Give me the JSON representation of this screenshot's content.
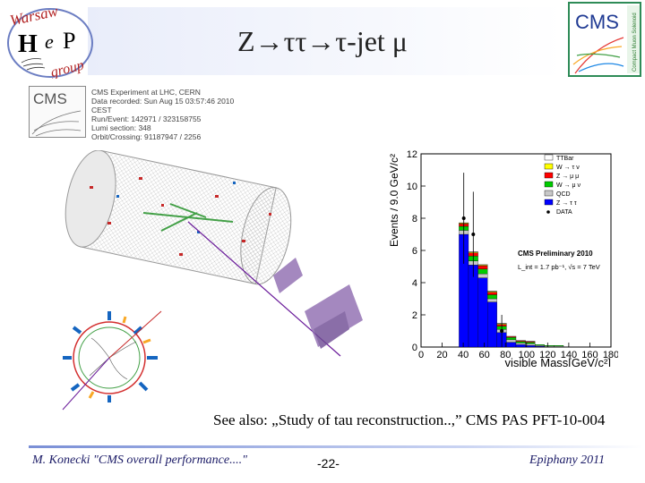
{
  "slide": {
    "title": "Z→ττ→τ-jet μ",
    "see_also": "See also: „Study of tau reconstruction..,” CMS PAS PFT-10-004",
    "footer_left": "M. Konecki  \"CMS overall performance....\"",
    "footer_page": "-22-",
    "footer_right": "Epiphany 2011"
  },
  "logo_left": {
    "line1": "Warsaw",
    "h": "H",
    "e": "e",
    "p": "P",
    "group": "group"
  },
  "logo_right": {
    "text": "CMS",
    "side": "Compact Muon Solenoid"
  },
  "event_info": {
    "logo_text": "CMS",
    "lines": [
      "CMS Experiment at LHC, CERN",
      "Data recorded: Sun Aug 15 03:57:46 2010 CEST",
      "Run/Event: 142971 / 323158755",
      "Lumi section: 348",
      "Orbit/Crossing: 91187947 / 2256"
    ]
  },
  "chart_data": {
    "type": "bar",
    "stacked": true,
    "xlabel": "visible Mass[GeV/c²]",
    "ylabel": "Events / 9.0 GeV/c²",
    "xlim": [
      0,
      180
    ],
    "ylim": [
      0,
      12
    ],
    "xticks": [
      0,
      20,
      40,
      60,
      80,
      100,
      120,
      140,
      160,
      180
    ],
    "yticks": [
      0,
      2,
      4,
      6,
      8,
      10,
      12
    ],
    "annotation_1": "CMS Preliminary 2010",
    "annotation_2": "L_int = 1.7 pb⁻¹, √s = 7 TeV",
    "bin_edges": [
      36,
      45,
      54,
      63,
      72,
      81,
      90,
      99,
      108,
      117,
      126,
      135,
      144,
      153,
      162,
      171,
      180
    ],
    "series": [
      {
        "name": "Z → τ τ",
        "color": "#0000ff",
        "values": [
          7.0,
          5.1,
          4.3,
          2.8,
          0.9,
          0.3,
          0.15,
          0.1,
          0.05,
          0.0,
          0.0,
          0.0,
          0.0,
          0.0,
          0.0,
          0.0
        ]
      },
      {
        "name": "QCD",
        "color": "#c8c8c8",
        "values": [
          0.25,
          0.25,
          0.25,
          0.2,
          0.2,
          0.15,
          0.1,
          0.1,
          0.05,
          0.05,
          0.05,
          0.0,
          0.0,
          0.0,
          0.0,
          0.0
        ]
      },
      {
        "name": "W → μ ν",
        "color": "#00cc00",
        "values": [
          0.25,
          0.3,
          0.3,
          0.25,
          0.2,
          0.15,
          0.1,
          0.1,
          0.05,
          0.05,
          0.05,
          0.0,
          0.0,
          0.0,
          0.0,
          0.0
        ]
      },
      {
        "name": "Z → μ μ",
        "color": "#ff0000",
        "values": [
          0.15,
          0.2,
          0.2,
          0.15,
          0.1,
          0.05,
          0.05,
          0.05,
          0.0,
          0.0,
          0.0,
          0.0,
          0.0,
          0.0,
          0.0,
          0.0
        ]
      },
      {
        "name": "W → τ ν",
        "color": "#ffff00",
        "values": [
          0.05,
          0.05,
          0.05,
          0.05,
          0.05,
          0.0,
          0.0,
          0.0,
          0.0,
          0.0,
          0.0,
          0.0,
          0.0,
          0.0,
          0.0,
          0.0
        ]
      },
      {
        "name": "TTBar",
        "color": "#ffffff",
        "values": [
          0.02,
          0.02,
          0.02,
          0.02,
          0.02,
          0.02,
          0.01,
          0.01,
          0.0,
          0.0,
          0.0,
          0.0,
          0.0,
          0.0,
          0.0,
          0.0
        ]
      }
    ],
    "data_points": {
      "name": "DATA",
      "x": [
        40.5,
        49.5,
        58.5,
        67.5,
        76.5,
        85.5,
        94.5,
        103.5,
        112.5,
        121.5
      ],
      "y": [
        8,
        7,
        0,
        0,
        1,
        0,
        0,
        0,
        0,
        0
      ]
    },
    "legend": [
      "TTBar",
      "W → τ ν",
      "Z → μ μ",
      "W → μ ν",
      "QCD",
      "Z → τ τ",
      "DATA"
    ],
    "legend_position": "top-right"
  }
}
